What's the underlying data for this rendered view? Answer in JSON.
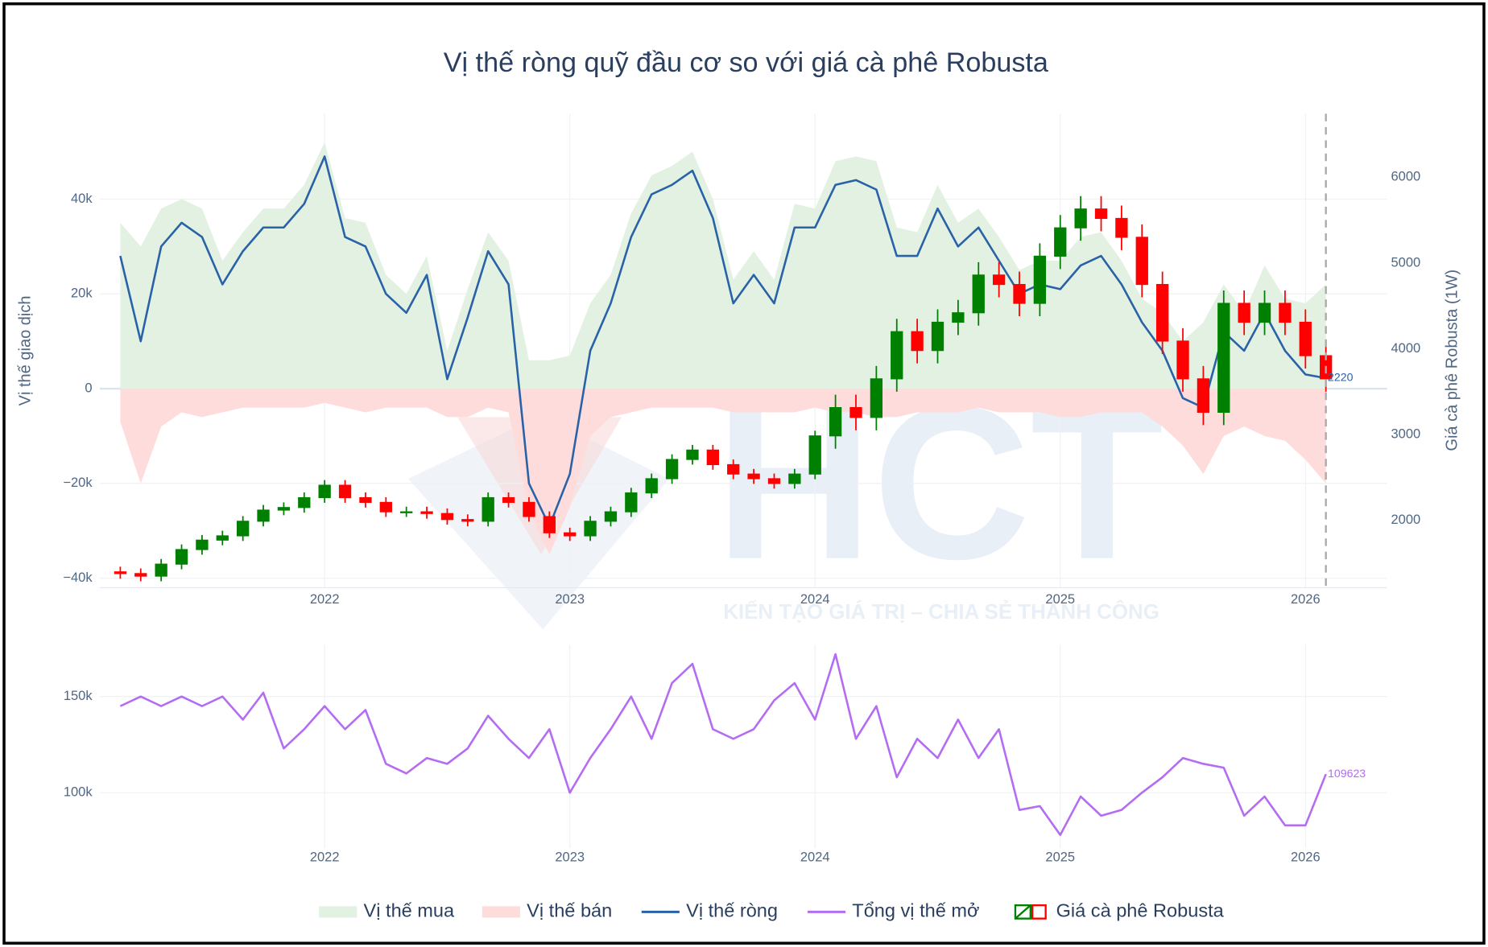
{
  "chart_data": {
    "type": "combo",
    "title": "Vị thế ròng quỹ đầu cơ so với giá cà phê Robusta",
    "ylabel": "Vị thế giao dịch",
    "y2label": "Giá cà phê Robusta (1W)",
    "watermark": {
      "logo": "HCT",
      "slogan": "KIẾN TẠO GIÁ TRỊ – CHIA SẺ THÀNH CÔNG"
    },
    "x": [
      "2021-03",
      "2021-04",
      "2021-05",
      "2021-06",
      "2021-07",
      "2021-08",
      "2021-09",
      "2021-10",
      "2021-11",
      "2021-12",
      "2022-01",
      "2022-02",
      "2022-03",
      "2022-04",
      "2022-05",
      "2022-06",
      "2022-07",
      "2022-08",
      "2022-09",
      "2022-10",
      "2022-11",
      "2022-12",
      "2023-01",
      "2023-02",
      "2023-03",
      "2023-04",
      "2023-05",
      "2023-06",
      "2023-07",
      "2023-08",
      "2023-09",
      "2023-10",
      "2023-11",
      "2023-12",
      "2024-01",
      "2024-02",
      "2024-03",
      "2024-04",
      "2024-05",
      "2024-06",
      "2024-07",
      "2024-08",
      "2024-09",
      "2024-10",
      "2024-11",
      "2024-12",
      "2025-01",
      "2025-02",
      "2025-03",
      "2025-04",
      "2025-05",
      "2025-06",
      "2025-07",
      "2025-08",
      "2025-09",
      "2025-10",
      "2025-11",
      "2025-12",
      "2026-01",
      "2026-02"
    ],
    "xlim": [
      "2021-02",
      "2026-05"
    ],
    "xticks": [
      2022,
      2023,
      2024,
      2025,
      2026
    ],
    "ylim": [
      -42000,
      58000
    ],
    "yticks": [
      {
        "value": -40000,
        "label": "−40k"
      },
      {
        "value": -20000,
        "label": "−20k"
      },
      0,
      {
        "value": 20000,
        "label": "20k"
      },
      {
        "value": 40000,
        "label": "40k"
      }
    ],
    "y2lim": [
      1215,
      6740
    ],
    "y2ticks": [
      2000,
      3000,
      4000,
      5000,
      6000
    ],
    "y3lim": [
      71000,
      177000
    ],
    "y3ticks": [
      {
        "value": 100000,
        "label": "100k"
      },
      {
        "value": 150000,
        "label": "150k"
      }
    ],
    "grid": true,
    "series": [
      {
        "name": "Vị thế mua",
        "type": "area",
        "color": "#e2f1e2",
        "values": [
          35000,
          30000,
          38000,
          40000,
          38000,
          27000,
          33000,
          38000,
          38000,
          43000,
          52000,
          36000,
          35000,
          24000,
          20000,
          28000,
          8000,
          21000,
          33000,
          27000,
          6000,
          6000,
          7000,
          18000,
          24000,
          37000,
          45000,
          47000,
          50000,
          40000,
          23000,
          29000,
          23000,
          39000,
          38000,
          48000,
          49000,
          48000,
          34000,
          33000,
          43000,
          35000,
          38000,
          32000,
          25000,
          27000,
          27000,
          32000,
          33000,
          27000,
          19000,
          16000,
          10000,
          14000,
          22000,
          16000,
          26000,
          19000,
          18000,
          22000
        ]
      },
      {
        "name": "Vị thế bán",
        "type": "area",
        "color": "#ffdcdc",
        "values": [
          -7000,
          -20000,
          -8000,
          -5000,
          -6000,
          -5000,
          -4000,
          -4000,
          -4000,
          -4000,
          -3000,
          -4000,
          -5000,
          -4000,
          -4000,
          -4000,
          -6000,
          -6000,
          -4000,
          -5000,
          -26000,
          -35000,
          -25000,
          -10000,
          -6000,
          -5000,
          -4000,
          -4000,
          -4000,
          -4000,
          -5000,
          -5000,
          -5000,
          -5000,
          -4000,
          -5000,
          -5000,
          -6000,
          -6000,
          -5000,
          -5000,
          -5000,
          -4000,
          -5000,
          -5000,
          -5000,
          -6000,
          -6000,
          -5000,
          -5000,
          -5000,
          -8000,
          -12000,
          -18000,
          -10000,
          -8000,
          -10000,
          -11000,
          -15000,
          -20000
        ]
      },
      {
        "name": "Vị thế ròng",
        "type": "line",
        "color": "#2a62a8",
        "values": [
          28000,
          10000,
          30000,
          35000,
          32000,
          22000,
          29000,
          34000,
          34000,
          39000,
          49000,
          32000,
          30000,
          20000,
          16000,
          24000,
          2000,
          15000,
          29000,
          22000,
          -20000,
          -29000,
          -18000,
          8000,
          18000,
          32000,
          41000,
          43000,
          46000,
          36000,
          18000,
          24000,
          18000,
          34000,
          34000,
          43000,
          44000,
          42000,
          28000,
          28000,
          38000,
          30000,
          34000,
          27000,
          20000,
          22000,
          21000,
          26000,
          28000,
          22000,
          14000,
          8000,
          -2000,
          -4000,
          12000,
          8000,
          16000,
          8000,
          3000,
          2220
        ]
      },
      {
        "name": "Tổng vị thế mở",
        "type": "line",
        "axis": "y3",
        "color": "#b46cf3",
        "values": [
          145000,
          150000,
          145000,
          150000,
          145000,
          150000,
          138000,
          152000,
          123000,
          133000,
          145000,
          133000,
          143000,
          115000,
          110000,
          118000,
          115000,
          123000,
          140000,
          128000,
          118000,
          133000,
          100000,
          118000,
          133000,
          150000,
          128000,
          157000,
          167000,
          133000,
          128000,
          133000,
          148000,
          157000,
          138000,
          172000,
          128000,
          145000,
          108000,
          128000,
          118000,
          138000,
          118000,
          133000,
          91000,
          93000,
          78000,
          98000,
          88000,
          91000,
          100000,
          108000,
          118000,
          115000,
          113000,
          88000,
          98000,
          83000,
          83000,
          109623
        ]
      },
      {
        "name": "Giá cà phê Robusta",
        "type": "candlestick",
        "axis": "y2",
        "increasing_color": "#008000",
        "decreasing_color": "#ff0000",
        "open": [
          1400,
          1380,
          1350,
          1490,
          1660,
          1770,
          1820,
          1990,
          2120,
          2150,
          2265,
          2410,
          2265,
          2210,
          2100,
          2100,
          2080,
          2010,
          1990,
          2265,
          2210,
          2045,
          1855,
          1820,
          1990,
          2100,
          2320,
          2486,
          2710,
          2820,
          2650,
          2540,
          2486,
          2430,
          2540,
          2985,
          3315,
          3200,
          3650,
          4200,
          3980,
          4310,
          4420,
          4860,
          4750,
          4530,
          5080,
          5410,
          5630,
          5520,
          5300,
          4750,
          4090,
          3650,
          3260,
          4530,
          4310,
          4530,
          4310,
          3920
        ],
        "high": [
          1460,
          1440,
          1550,
          1720,
          1830,
          1880,
          2050,
          2180,
          2210,
          2325,
          2470,
          2470,
          2325,
          2270,
          2160,
          2160,
          2140,
          2070,
          2325,
          2325,
          2270,
          2105,
          1915,
          2050,
          2160,
          2380,
          2546,
          2770,
          2880,
          2880,
          2710,
          2600,
          2546,
          2600,
          3045,
          3465,
          3465,
          3800,
          4350,
          4350,
          4460,
          4570,
          5010,
          5010,
          4900,
          5230,
          5560,
          5780,
          5780,
          5670,
          5450,
          4900,
          4240,
          3800,
          4680,
          4680,
          4680,
          4680,
          4460,
          4070
        ],
        "low": [
          1320,
          1290,
          1290,
          1430,
          1600,
          1710,
          1760,
          1930,
          2060,
          2090,
          2205,
          2205,
          2150,
          2040,
          2040,
          2020,
          1950,
          1930,
          1930,
          2150,
          1985,
          1795,
          1760,
          1760,
          1930,
          2040,
          2260,
          2426,
          2650,
          2590,
          2480,
          2426,
          2370,
          2370,
          2480,
          2835,
          3050,
          3050,
          3500,
          3830,
          3830,
          4160,
          4270,
          4600,
          4380,
          4380,
          4930,
          5260,
          5370,
          5150,
          4600,
          3940,
          3500,
          3110,
          3110,
          4160,
          4160,
          4160,
          3770,
          3500
        ],
        "close": [
          1380,
          1350,
          1490,
          1660,
          1770,
          1820,
          1990,
          2120,
          2150,
          2265,
          2410,
          2265,
          2210,
          2100,
          2100,
          2080,
          2010,
          1990,
          2265,
          2210,
          2045,
          1855,
          1820,
          1990,
          2100,
          2320,
          2486,
          2710,
          2820,
          2650,
          2540,
          2486,
          2430,
          2540,
          2985,
          3315,
          3200,
          3650,
          4200,
          3980,
          4310,
          4420,
          4860,
          4750,
          4530,
          5080,
          5410,
          5630,
          5520,
          5300,
          4750,
          4090,
          3650,
          3260,
          4530,
          4310,
          4530,
          4310,
          3920,
          3650
        ]
      }
    ]
  }
}
